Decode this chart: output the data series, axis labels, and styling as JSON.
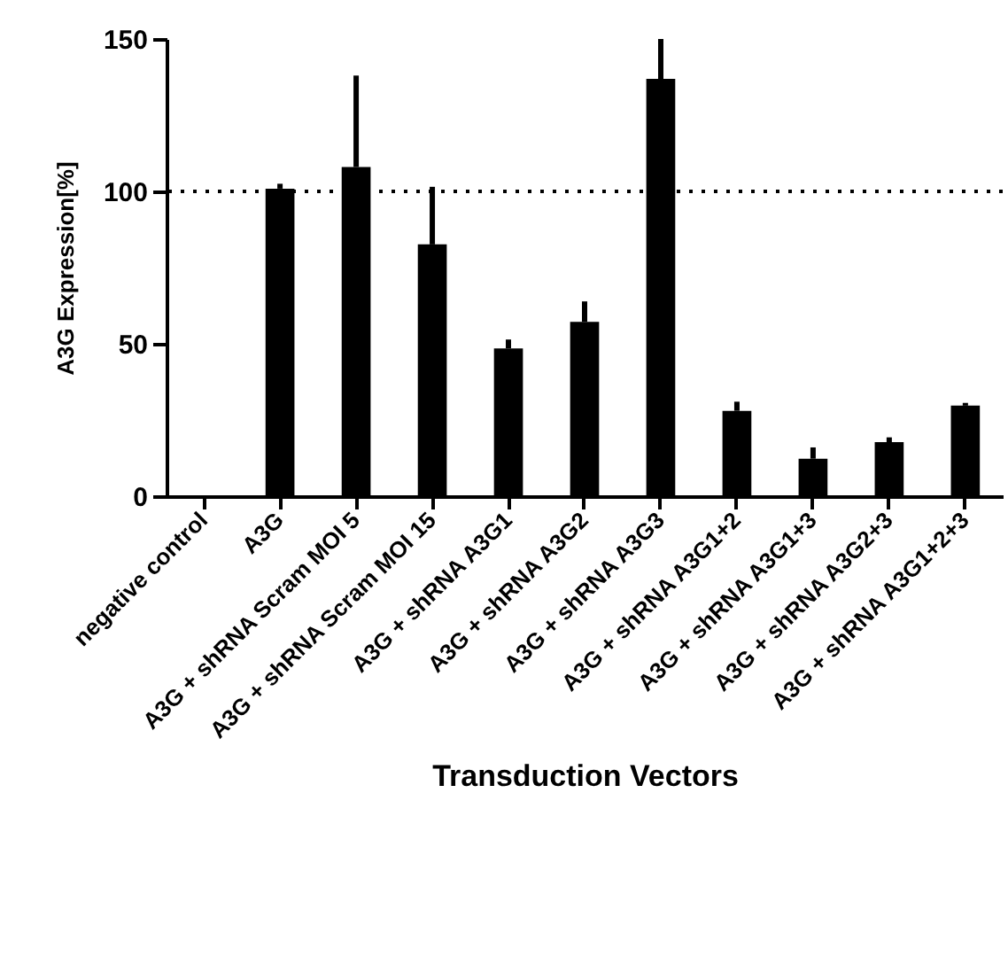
{
  "chart_data": {
    "type": "bar",
    "xlabel": "Transduction Vectors",
    "ylabel": "A3G Expression[%]",
    "categories": [
      "negative control",
      "A3G",
      "A3G + shRNA Scram  MOI 5",
      "A3G + shRNA Scram  MOI 15",
      "A3G + shRNA A3G1",
      "A3G + shRNA A3G2",
      "A3G + shRNA A3G3",
      "A3G + shRNA A3G1+2",
      "A3G + shRNA A3G1+3",
      "A3G + shRNA A3G2+3",
      "A3G + shRNA A3G1+2+3"
    ],
    "values": [
      0.3,
      100.9,
      108,
      82.6,
      48.5,
      57.2,
      136.9,
      28,
      12.3,
      17.7,
      29.7
    ],
    "errors": [
      null,
      [
        100.9,
        102.5
      ],
      [
        108,
        138
      ],
      [
        82.6,
        101.5
      ],
      [
        48.5,
        51.4
      ],
      [
        57.2,
        63.9
      ],
      [
        136.9,
        150
      ],
      [
        28,
        31
      ],
      [
        12.3,
        16
      ],
      [
        17.7,
        19.3
      ],
      [
        29.7,
        30.6
      ]
    ],
    "color": "#000000",
    "ylim": [
      0,
      150
    ],
    "yticks": [
      0,
      50,
      100,
      150
    ],
    "grid": false,
    "ref_lines": [
      {
        "axis": "y",
        "value": 100,
        "line_style": "dotted",
        "color": "#000000"
      }
    ]
  }
}
